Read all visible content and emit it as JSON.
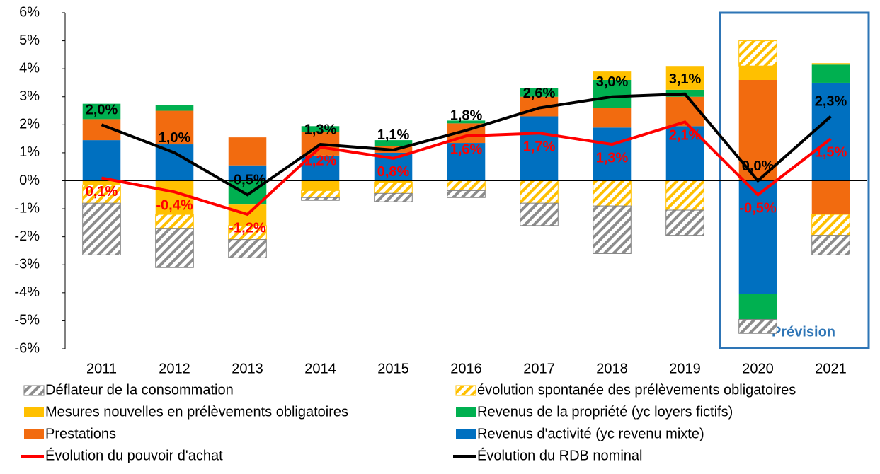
{
  "chart_data": {
    "type": "bar",
    "categories": [
      "2011",
      "2012",
      "2013",
      "2014",
      "2015",
      "2016",
      "2017",
      "2018",
      "2019",
      "2020",
      "2021"
    ],
    "series": [
      {
        "name": "Déflateur de la consommation",
        "color": "#808080",
        "hatch": true,
        "values": [
          -1.85,
          -1.4,
          -0.65,
          -0.1,
          -0.3,
          -0.25,
          -0.8,
          -1.7,
          -0.9,
          -0.5,
          -0.7
        ]
      },
      {
        "name": "évolution spontanée des prélèvements obligatoires",
        "color": "#ffc000",
        "hatch": true,
        "values": [
          -0.65,
          -0.5,
          -0.5,
          -0.25,
          -0.4,
          -0.35,
          -0.8,
          -0.9,
          -1.05,
          0.9,
          -0.75
        ]
      },
      {
        "name": "Mesures nouvelles en prélèvements obligatoires",
        "color": "#ffc000",
        "values": [
          -0.15,
          -1.2,
          -0.75,
          -0.35,
          -0.05,
          0,
          0,
          0.3,
          0.85,
          0.5,
          0.05
        ]
      },
      {
        "name": "Revenus de la propriété (yc loyers fictifs)",
        "color": "#00b050",
        "values": [
          0.55,
          0.2,
          -0.85,
          0.2,
          0.2,
          0.1,
          0.3,
          1.0,
          0.25,
          -0.9,
          0.65
        ]
      },
      {
        "name": "Prestations",
        "color": "#f26b0f",
        "values": [
          0.75,
          1.2,
          1.0,
          0.85,
          0.25,
          0.7,
          0.7,
          0.7,
          1.05,
          3.6,
          -1.2
        ]
      },
      {
        "name": "Revenus d'activité (yc revenu mixte)",
        "color": "#0070c0",
        "values": [
          1.45,
          1.3,
          0.55,
          0.9,
          1.0,
          1.35,
          2.3,
          1.9,
          1.95,
          -4.05,
          3.5
        ]
      },
      {
        "name": "Évolution du pouvoir d'achat",
        "type": "line",
        "color": "#ff0000",
        "values": [
          0.1,
          -0.4,
          -1.2,
          1.2,
          0.8,
          1.6,
          1.7,
          1.3,
          2.1,
          -0.5,
          1.5
        ],
        "value_labels": [
          "0,1%",
          "-0,4%",
          "-1,2%",
          "1,2%",
          "0,8%",
          "1,6%",
          "1,7%",
          "1,3%",
          "2,1%",
          "-0,5%",
          "1,5%"
        ]
      },
      {
        "name": "Évolution du RDB nominal",
        "type": "line",
        "color": "#000000",
        "values": [
          2.0,
          1.0,
          -0.5,
          1.3,
          1.1,
          1.8,
          2.6,
          3.0,
          3.1,
          0.0,
          2.3
        ],
        "value_labels": [
          "2,0%",
          "1,0%",
          "-0,5%",
          "1,3%",
          "1,1%",
          "1,8%",
          "2,6%",
          "3,0%",
          "3,1%",
          "0,0%",
          "2,3%"
        ]
      }
    ],
    "ylim": [
      -6,
      6
    ],
    "yticks": [
      {
        "value": -6,
        "label": "-6%"
      },
      {
        "value": -5,
        "label": "-5%"
      },
      {
        "value": -4,
        "label": "-4%"
      },
      {
        "value": -3,
        "label": "-3%"
      },
      {
        "value": -2,
        "label": "-2%"
      },
      {
        "value": -1,
        "label": "-1%"
      },
      {
        "value": 0,
        "label": "0%"
      },
      {
        "value": 1,
        "label": "1%"
      },
      {
        "value": 2,
        "label": "2%"
      },
      {
        "value": 3,
        "label": "3%"
      },
      {
        "value": 4,
        "label": "4%"
      },
      {
        "value": 5,
        "label": "5%"
      },
      {
        "value": 6,
        "label": "6%"
      }
    ],
    "annotation": "Prévision"
  }
}
